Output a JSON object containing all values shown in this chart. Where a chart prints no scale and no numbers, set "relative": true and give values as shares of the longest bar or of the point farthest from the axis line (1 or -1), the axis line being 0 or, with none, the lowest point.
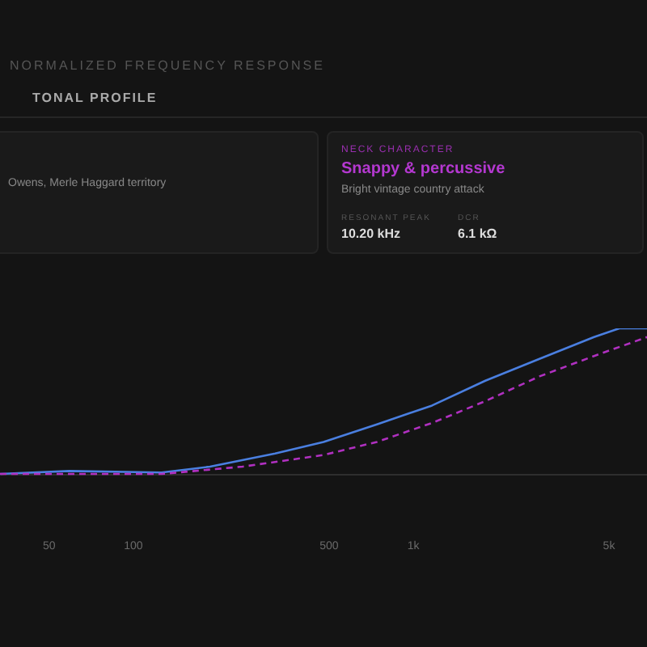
{
  "chart_data": {
    "type": "line",
    "title": "NORMALIZED FREQUENCY RESPONSE",
    "annotations": [
      "TONAL PROFILE",
      "Owens, Merle Haggard territory",
      "NECK CHARACTER",
      "Snappy & percussive",
      "Bright vintage country attack",
      "RESONANT PEAK",
      "10.20 kHz",
      "DCR",
      "6.1 kΩ"
    ],
    "relative": true,
    "log": "x",
    "xlim": [
      33.6,
      6880
    ],
    "xticks": [
      50,
      100,
      500,
      {
        "value": 1000,
        "label": "1k"
      },
      {
        "value": 5000,
        "label": "5k"
      }
    ],
    "series": [
      {
        "color": "#4a7fe0",
        "line_style": "solid",
        "x": [
          33.6,
          59.5,
          127,
          189,
          323,
          481,
          746,
          1174,
          1820,
          2840,
          4450,
          5480,
          6880
        ],
        "values": [
          0,
          0.02,
          0.01,
          0.05,
          0.14,
          0.22,
          0.34,
          0.47,
          0.64,
          0.79,
          0.94,
          1,
          1
        ]
      },
      {
        "color": "#b030c0",
        "line_style": "dashed",
        "x": [
          33.6,
          127,
          247,
          481,
          746,
          1174,
          1820,
          2840,
          4450,
          6880
        ],
        "values": [
          0,
          0,
          0.05,
          0.13,
          0.22,
          0.35,
          0.5,
          0.67,
          0.81,
          0.94
        ]
      }
    ]
  }
}
